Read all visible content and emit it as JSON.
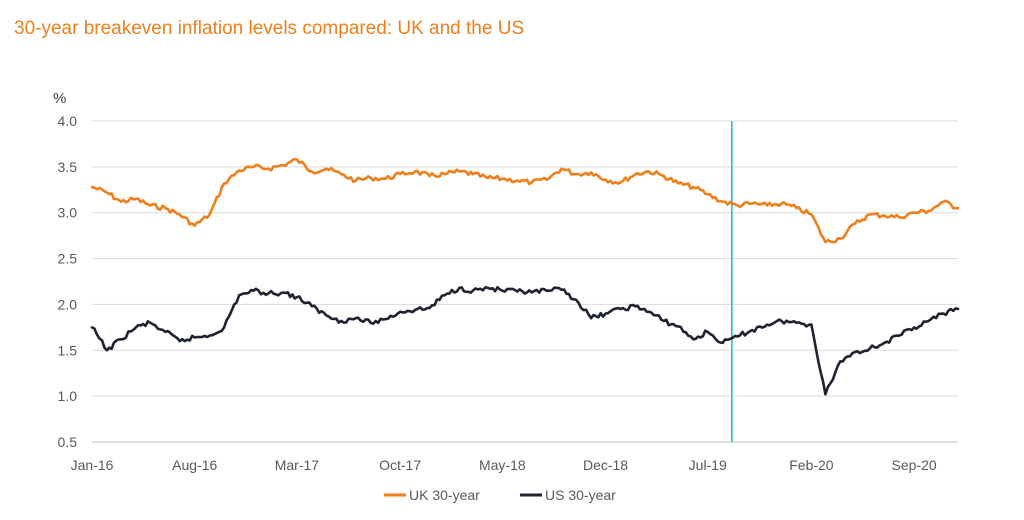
{
  "title": "30-year breakeven inflation levels compared: UK and the US",
  "chart_data": {
    "type": "line",
    "title": "30-year breakeven inflation levels compared: UK and the US",
    "ylabel": "%",
    "xlabel": "",
    "ylim": [
      0.5,
      4.0
    ],
    "yticks": [
      "4.0",
      "3.5",
      "3.0",
      "2.5",
      "2.0",
      "1.5",
      "1.0",
      "0.5"
    ],
    "ytick_values": [
      4.0,
      3.5,
      3.0,
      2.5,
      2.0,
      1.5,
      1.0,
      0.5
    ],
    "xlim": [
      "2016-01-01",
      "2020-12-01"
    ],
    "xticks": [
      "Jan-16",
      "Aug-16",
      "Mar-17",
      "Oct-17",
      "May-18",
      "Dec-18",
      "Jul-19",
      "Feb-20",
      "Sep-20"
    ],
    "xtick_dates": [
      "2016-01-01",
      "2016-08-01",
      "2017-03-01",
      "2017-10-01",
      "2018-05-01",
      "2018-12-01",
      "2019-07-01",
      "2020-02-01",
      "2020-09-01"
    ],
    "grid": "horizontal",
    "legend": "bottom",
    "vline": "2019-08-20",
    "series": [
      {
        "name": "UK 30-year",
        "color": "#ee7f1b",
        "x": [
          "2016-01-01",
          "2016-02-01",
          "2016-03-01",
          "2016-04-01",
          "2016-05-01",
          "2016-06-01",
          "2016-07-01",
          "2016-08-01",
          "2016-09-01",
          "2016-10-01",
          "2016-11-01",
          "2016-12-01",
          "2017-01-01",
          "2017-02-01",
          "2017-03-01",
          "2017-04-01",
          "2017-05-01",
          "2017-06-01",
          "2017-07-01",
          "2017-08-01",
          "2017-09-01",
          "2017-10-01",
          "2017-11-01",
          "2017-12-01",
          "2018-01-01",
          "2018-02-01",
          "2018-03-01",
          "2018-04-01",
          "2018-05-01",
          "2018-06-01",
          "2018-07-01",
          "2018-08-01",
          "2018-09-01",
          "2018-10-01",
          "2018-11-01",
          "2018-12-01",
          "2019-01-01",
          "2019-02-01",
          "2019-03-01",
          "2019-04-01",
          "2019-05-01",
          "2019-06-01",
          "2019-07-01",
          "2019-08-01",
          "2019-09-01",
          "2019-10-01",
          "2019-11-01",
          "2019-12-01",
          "2020-01-01",
          "2020-02-01",
          "2020-03-01",
          "2020-04-01",
          "2020-05-01",
          "2020-06-01",
          "2020-07-01",
          "2020-08-01",
          "2020-09-01",
          "2020-10-01",
          "2020-11-01",
          "2020-12-01"
        ],
        "y": [
          3.28,
          3.22,
          3.12,
          3.15,
          3.08,
          3.05,
          2.98,
          2.86,
          2.98,
          3.32,
          3.46,
          3.5,
          3.48,
          3.52,
          3.58,
          3.45,
          3.48,
          3.42,
          3.35,
          3.38,
          3.37,
          3.42,
          3.45,
          3.4,
          3.42,
          3.45,
          3.42,
          3.38,
          3.37,
          3.35,
          3.33,
          3.36,
          3.48,
          3.42,
          3.44,
          3.36,
          3.33,
          3.42,
          3.45,
          3.4,
          3.32,
          3.28,
          3.2,
          3.12,
          3.08,
          3.1,
          3.08,
          3.1,
          3.05,
          2.98,
          2.68,
          2.72,
          2.88,
          2.98,
          2.97,
          2.95,
          3.0,
          3.02,
          3.12,
          3.05
        ]
      },
      {
        "name": "US 30-year",
        "color": "#1f2233",
        "x": [
          "2016-01-01",
          "2016-02-01",
          "2016-03-01",
          "2016-04-01",
          "2016-05-01",
          "2016-06-01",
          "2016-07-01",
          "2016-08-01",
          "2016-09-01",
          "2016-10-01",
          "2016-11-01",
          "2016-12-01",
          "2017-01-01",
          "2017-02-01",
          "2017-03-01",
          "2017-04-01",
          "2017-05-01",
          "2017-06-01",
          "2017-07-01",
          "2017-08-01",
          "2017-09-01",
          "2017-10-01",
          "2017-11-01",
          "2017-12-01",
          "2018-01-01",
          "2018-02-01",
          "2018-03-01",
          "2018-04-01",
          "2018-05-01",
          "2018-06-01",
          "2018-07-01",
          "2018-08-01",
          "2018-09-01",
          "2018-10-01",
          "2018-11-01",
          "2018-12-01",
          "2019-01-01",
          "2019-02-01",
          "2019-03-01",
          "2019-04-01",
          "2019-05-01",
          "2019-06-01",
          "2019-07-01",
          "2019-08-01",
          "2019-09-01",
          "2019-10-01",
          "2019-11-01",
          "2019-12-01",
          "2020-01-01",
          "2020-02-01",
          "2020-03-01",
          "2020-04-01",
          "2020-05-01",
          "2020-06-01",
          "2020-07-01",
          "2020-08-01",
          "2020-09-01",
          "2020-10-01",
          "2020-11-01",
          "2020-12-01"
        ],
        "y": [
          1.75,
          1.5,
          1.62,
          1.75,
          1.8,
          1.7,
          1.6,
          1.64,
          1.66,
          1.75,
          2.1,
          2.15,
          2.12,
          2.13,
          2.08,
          1.98,
          1.88,
          1.82,
          1.85,
          1.8,
          1.84,
          1.92,
          1.94,
          1.96,
          2.1,
          2.18,
          2.15,
          2.18,
          2.15,
          2.14,
          2.13,
          2.15,
          2.16,
          2.05,
          1.85,
          1.9,
          1.95,
          1.98,
          1.92,
          1.82,
          1.76,
          1.62,
          1.7,
          1.58,
          1.65,
          1.72,
          1.78,
          1.82,
          1.8,
          1.78,
          1.02,
          1.38,
          1.48,
          1.52,
          1.58,
          1.66,
          1.75,
          1.82,
          1.9,
          1.95
        ]
      }
    ]
  }
}
